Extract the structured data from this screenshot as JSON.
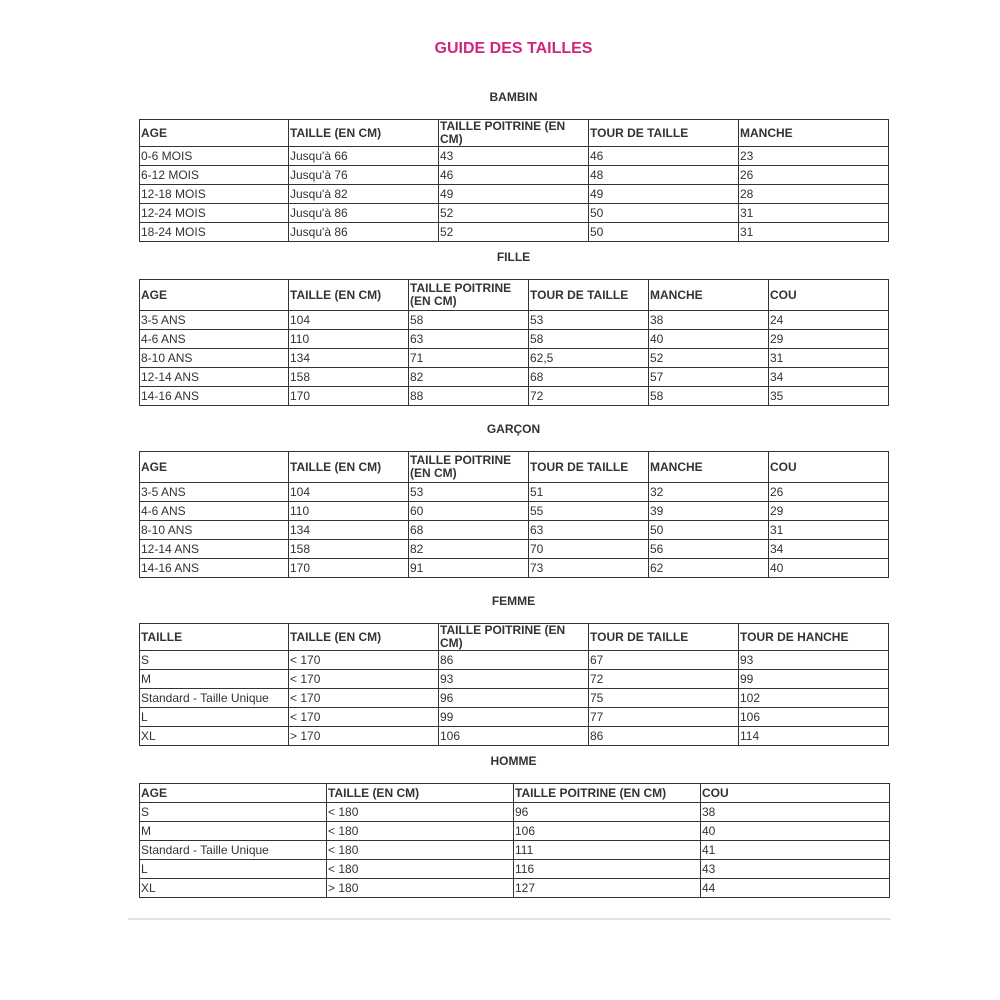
{
  "title": "GUIDE DES TAILLES",
  "sections": [
    {
      "name": "BAMBIN",
      "headers": [
        "AGE",
        "TAILLE (EN CM)",
        "TAILLE POITRINE (EN CM)",
        "TOUR DE TAILLE",
        "MANCHE"
      ],
      "rows": [
        [
          "0-6 MOIS",
          "Jusqu'à 66",
          "43",
          "46",
          "23"
        ],
        [
          "6-12 MOIS",
          "Jusqu'à 76",
          "46",
          "48",
          "26"
        ],
        [
          "12-18 MOIS",
          "Jusqu'à 82",
          "49",
          "49",
          "28"
        ],
        [
          "12-24 MOIS",
          "Jusqu'à 86",
          "52",
          "50",
          "31"
        ],
        [
          "18-24 MOIS",
          "Jusqu'à 86",
          "52",
          "50",
          "31"
        ]
      ]
    },
    {
      "name": "FILLE",
      "headers": [
        "AGE",
        "TAILLE (EN CM)",
        "TAILLE POITRINE (EN CM)",
        "TOUR DE TAILLE",
        "MANCHE",
        "COU"
      ],
      "rows": [
        [
          "3-5 ANS",
          "104",
          "58",
          "53",
          "38",
          "24"
        ],
        [
          "4-6 ANS",
          "110",
          "63",
          "58",
          "40",
          "29"
        ],
        [
          "8-10 ANS",
          "134",
          "71",
          "62,5",
          "52",
          "31"
        ],
        [
          "12-14 ANS",
          "158",
          "82",
          "68",
          "57",
          "34"
        ],
        [
          "14-16 ANS",
          "170",
          "88",
          "72",
          "58",
          "35"
        ]
      ]
    },
    {
      "name": "GARÇON",
      "headers": [
        "AGE",
        "TAILLE (EN CM)",
        "TAILLE POITRINE (EN CM)",
        "TOUR DE TAILLE",
        "MANCHE",
        "COU"
      ],
      "rows": [
        [
          "3-5 ANS",
          "104",
          "53",
          "51",
          "32",
          "26"
        ],
        [
          "4-6 ANS",
          "110",
          "60",
          "55",
          "39",
          "29"
        ],
        [
          "8-10 ANS",
          "134",
          "68",
          "63",
          "50",
          "31"
        ],
        [
          "12-14 ANS",
          "158",
          "82",
          "70",
          "56",
          "34"
        ],
        [
          "14-16 ANS",
          "170",
          "91",
          "73",
          "62",
          "40"
        ]
      ]
    },
    {
      "name": "FEMME",
      "headers": [
        "TAILLE",
        "TAILLE (EN CM)",
        "TAILLE POITRINE (EN CM)",
        "TOUR DE TAILLE",
        "TOUR DE HANCHE"
      ],
      "rows": [
        [
          "S",
          "< 170",
          "86",
          "67",
          "93"
        ],
        [
          "M",
          "< 170",
          "93",
          "72",
          "99"
        ],
        [
          "Standard - Taille Unique",
          "< 170",
          "96",
          "75",
          "102"
        ],
        [
          "L",
          "< 170",
          "99",
          "77",
          "106"
        ],
        [
          "XL",
          "> 170",
          "106",
          "86",
          "114"
        ]
      ]
    },
    {
      "name": "HOMME",
      "headers": [
        "AGE",
        "TAILLE (EN CM)",
        "TAILLE POITRINE (EN CM)",
        "COU"
      ],
      "rows": [
        [
          "S",
          "< 180",
          "96",
          "38"
        ],
        [
          "M",
          "< 180",
          "106",
          "40"
        ],
        [
          "Standard - Taille Unique",
          "< 180",
          "111",
          "41"
        ],
        [
          "L",
          "< 180",
          "116",
          "43"
        ],
        [
          "XL",
          "> 180",
          "127",
          "44"
        ]
      ]
    }
  ]
}
